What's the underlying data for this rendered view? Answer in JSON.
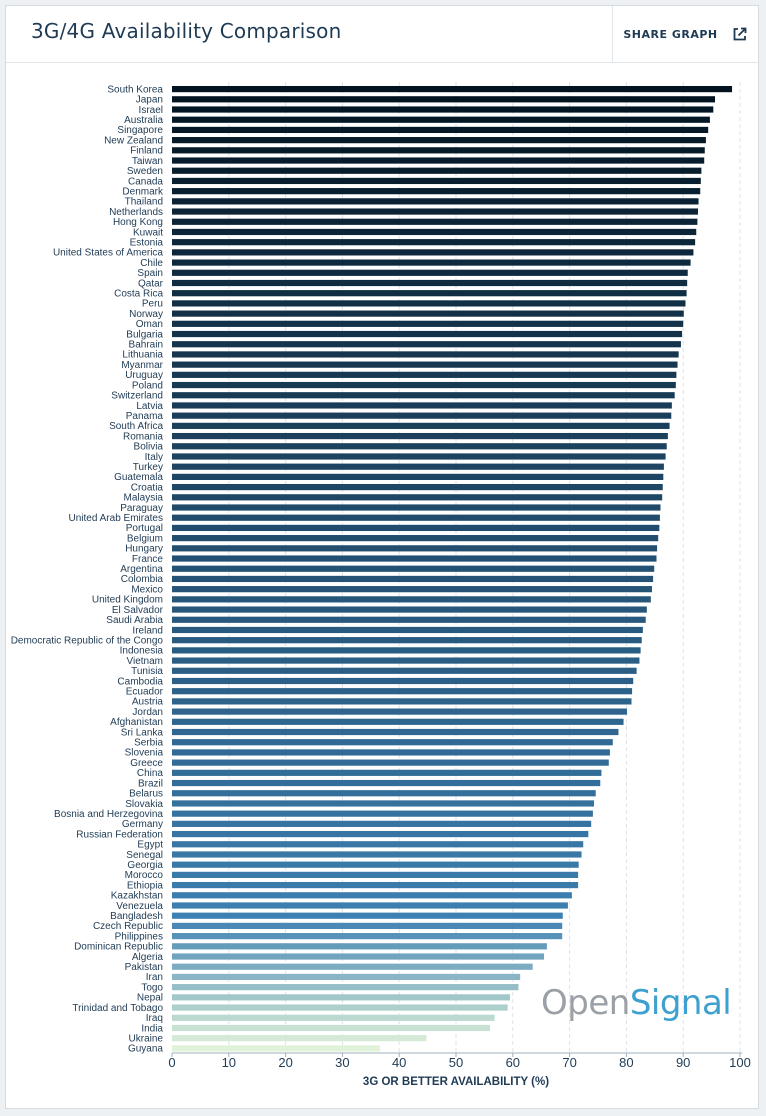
{
  "header": {
    "title": "3G/4G Availability Comparison",
    "share_label": "SHARE GRAPH"
  },
  "watermark": {
    "part1": "Open",
    "part2": "Signal"
  },
  "chart_data": {
    "type": "bar",
    "orientation": "horizontal",
    "title": "3G/4G Availability Comparison",
    "xlabel": "3G OR BETTER AVAILABILITY (%)",
    "ylabel": "",
    "xlim": [
      0,
      100
    ],
    "xticks": [
      0,
      10,
      20,
      30,
      40,
      50,
      60,
      70,
      80,
      90,
      100
    ],
    "grid": "vertical dashed",
    "categories": [
      "South Korea",
      "Japan",
      "Israel",
      "Australia",
      "Singapore",
      "New Zealand",
      "Finland",
      "Taiwan",
      "Sweden",
      "Canada",
      "Denmark",
      "Thailand",
      "Netherlands",
      "Hong Kong",
      "Kuwait",
      "Estonia",
      "United States of America",
      "Chile",
      "Spain",
      "Qatar",
      "Costa Rica",
      "Peru",
      "Norway",
      "Oman",
      "Bulgaria",
      "Bahrain",
      "Lithuania",
      "Myanmar",
      "Uruguay",
      "Poland",
      "Switzerland",
      "Latvia",
      "Panama",
      "South Africa",
      "Romania",
      "Bolivia",
      "Italy",
      "Turkey",
      "Guatemala",
      "Croatia",
      "Malaysia",
      "Paraguay",
      "United Arab Emirates",
      "Portugal",
      "Belgium",
      "Hungary",
      "France",
      "Argentina",
      "Colombia",
      "Mexico",
      "United Kingdom",
      "El Salvador",
      "Saudi Arabia",
      "Ireland",
      "Democratic Republic of the Congo",
      "Indonesia",
      "Vietnam",
      "Tunisia",
      "Cambodia",
      "Ecuador",
      "Austria",
      "Jordan",
      "Afghanistan",
      "Sri Lanka",
      "Serbia",
      "Slovenia",
      "Greece",
      "China",
      "Brazil",
      "Belarus",
      "Slovakia",
      "Bosnia and Herzegovina",
      "Germany",
      "Russian Federation",
      "Egypt",
      "Senegal",
      "Georgia",
      "Morocco",
      "Ethiopia",
      "Kazakhstan",
      "Venezuela",
      "Bangladesh",
      "Czech Republic",
      "Philippines",
      "Dominican Republic",
      "Algeria",
      "Pakistan",
      "Iran",
      "Togo",
      "Nepal",
      "Trinidad and Tobago",
      "Iraq",
      "India",
      "Ukraine",
      "Guyana"
    ],
    "values": [
      98.6,
      95.6,
      95.3,
      94.7,
      94.4,
      94.0,
      93.8,
      93.7,
      93.2,
      93.1,
      93.0,
      92.7,
      92.6,
      92.5,
      92.3,
      92.1,
      91.8,
      91.3,
      90.8,
      90.7,
      90.6,
      90.4,
      90.1,
      90.0,
      89.8,
      89.6,
      89.2,
      89.0,
      88.8,
      88.7,
      88.5,
      88.0,
      87.9,
      87.6,
      87.3,
      87.1,
      86.9,
      86.6,
      86.5,
      86.4,
      86.3,
      86.0,
      85.9,
      85.8,
      85.6,
      85.4,
      85.3,
      84.9,
      84.7,
      84.5,
      84.3,
      83.6,
      83.4,
      82.9,
      82.7,
      82.5,
      82.3,
      81.8,
      81.2,
      81.0,
      80.9,
      80.1,
      79.5,
      78.6,
      77.6,
      77.1,
      76.9,
      75.6,
      75.4,
      74.6,
      74.3,
      74.1,
      73.8,
      73.3,
      72.4,
      72.1,
      71.6,
      71.5,
      71.5,
      70.4,
      69.7,
      68.8,
      68.7,
      68.7,
      66.0,
      65.5,
      63.5,
      61.3,
      61.0,
      59.5,
      59.1,
      56.8,
      56.0,
      44.8,
      36.6
    ],
    "color_scale": [
      "#02131f",
      "#3c7fb1",
      "#e0f3d9"
    ]
  }
}
